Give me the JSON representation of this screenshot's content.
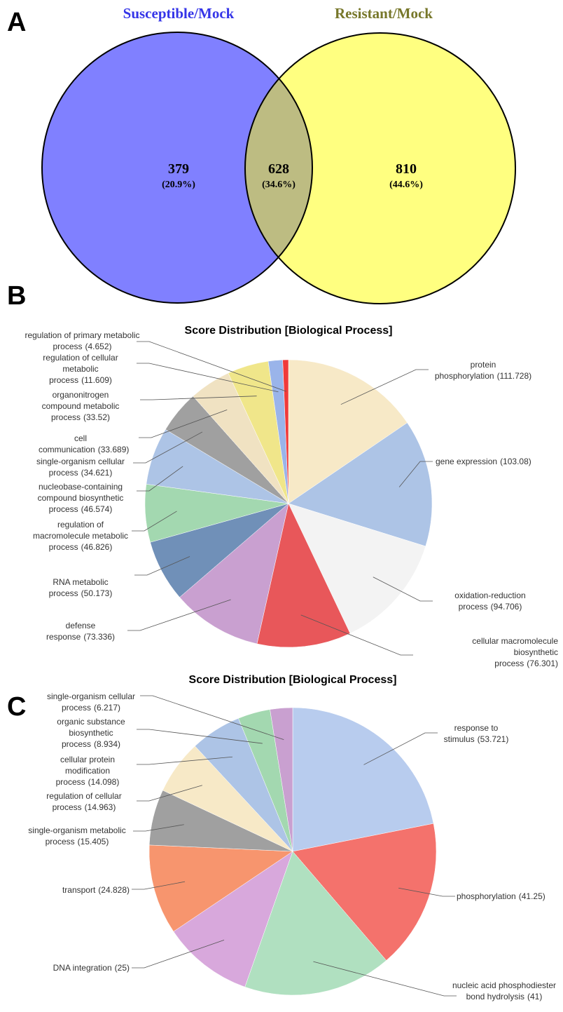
{
  "panel_labels": [
    "A",
    "B",
    "C"
  ],
  "chart_data": [
    {
      "type": "venn",
      "sets": [
        {
          "name": "Susceptible/Mock",
          "color": "#3535e8"
        },
        {
          "name": "Resistant/Mock",
          "color": "#77772a"
        }
      ],
      "values": [
        379,
        628,
        810
      ],
      "value_labels": [
        "(20.9%)",
        "(34.6%)",
        "(44.6%)"
      ],
      "region_colors": [
        "#8080ff",
        "#bdbc82",
        "#ffff80"
      ]
    },
    {
      "type": "pie",
      "title": "Score Distribution [Biological Process]",
      "categories": [
        "protein phosphorylation",
        "gene expression",
        "oxidation-reduction process",
        "cellular macromolecule biosynthetic process",
        "defense response",
        "RNA metabolic process",
        "regulation of macromolecule metabolic process",
        "nucleobase-containing compound biosynthetic process",
        "single-organism cellular process",
        "cell communication",
        "organonitrogen compound metabolic process",
        "regulation of cellular metabolic process",
        "regulation of primary metabolic process"
      ],
      "values": [
        111.728,
        103.08,
        94.706,
        76.301,
        73.336,
        50.173,
        46.826,
        46.574,
        34.621,
        33.689,
        33.52,
        11.609,
        4.652
      ],
      "value_labels": [
        "(111.728)",
        "(103.08)",
        "(94.706)",
        "(76.301)",
        "(73.336)",
        "(50.173)",
        "(46.826)",
        "(46.574)",
        "(34.621)",
        "(33.689)",
        "(33.52)",
        "(11.609)",
        "(4.652)"
      ],
      "colors": [
        "#f7e9c7",
        "#adc4e6",
        "#f3f3f3",
        "#e8575a",
        "#c9a0d0",
        "#7090b8",
        "#a3d8b0",
        "#adc4e6",
        "#a0a0a0",
        "#f0e2c2",
        "#f0e68a",
        "#9ab4ea",
        "#f03a3a"
      ]
    },
    {
      "type": "pie",
      "title": "Score Distribution [Biological Process]",
      "categories": [
        "response to stimulus",
        "phosphorylation",
        "nucleic acid phosphodiester bond hydrolysis",
        "DNA integration",
        "transport",
        "single-organism metabolic process",
        "regulation of cellular process",
        "cellular protein modification process",
        "organic substance biosynthetic process",
        "single-organism cellular process"
      ],
      "values": [
        53.721,
        41.25,
        41,
        25,
        24.828,
        15.405,
        14.963,
        14.098,
        8.934,
        6.217
      ],
      "value_labels": [
        "(53.721)",
        "(41.25)",
        "(41)",
        "(25)",
        "(24.828)",
        "(15.405)",
        "(14.963)",
        "(14.098)",
        "(8.934)",
        "(6.217)"
      ],
      "colors": [
        "#b8ccee",
        "#f4726c",
        "#b0e0c0",
        "#d8a8dc",
        "#f7956e",
        "#a0a0a0",
        "#f7e9c7",
        "#adc4e6",
        "#a3d8b0",
        "#c9a0d0"
      ]
    }
  ]
}
